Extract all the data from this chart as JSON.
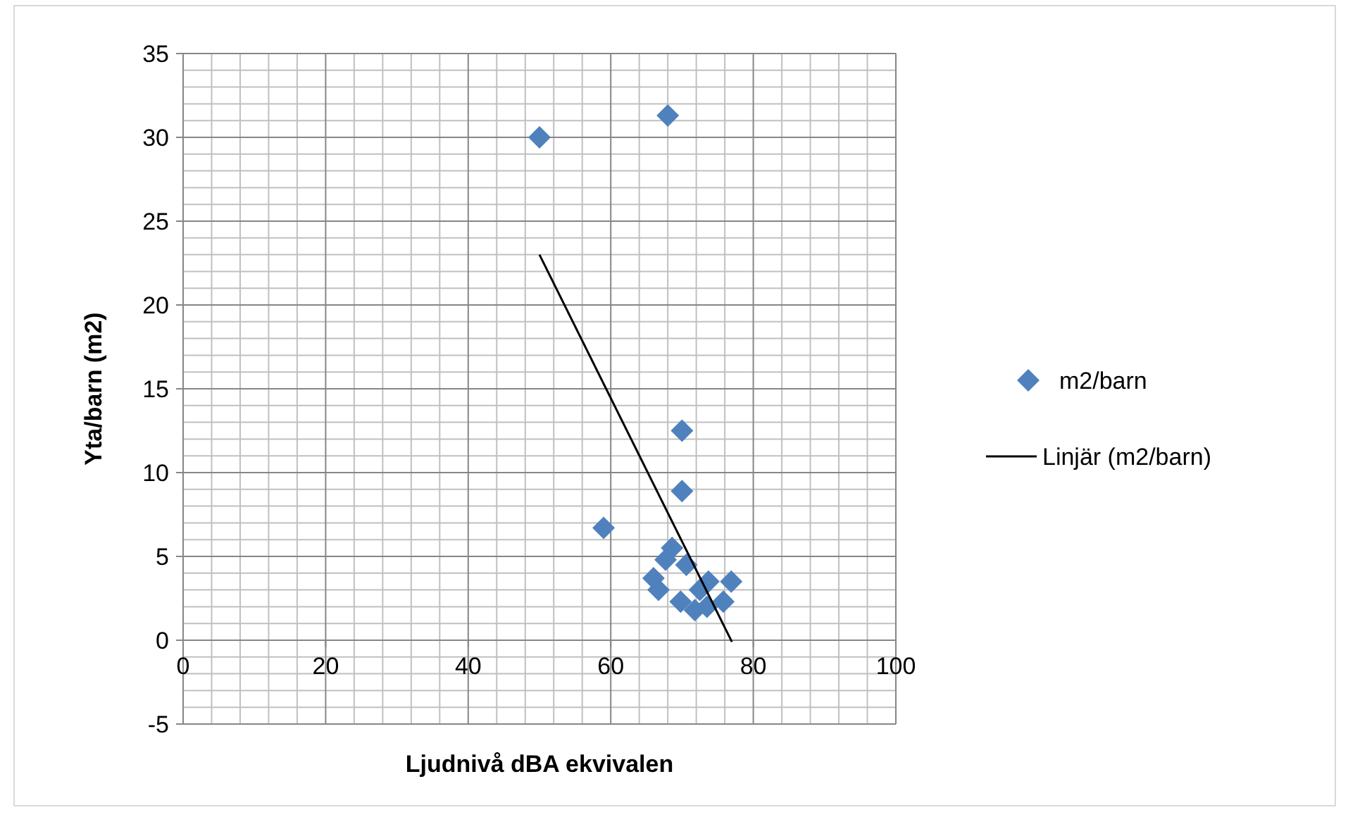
{
  "chart_data": {
    "type": "scatter",
    "xlabel": "Ljudnivå dBA ekvivalen",
    "ylabel": "Yta/barn (m2)",
    "xlim": [
      0,
      100
    ],
    "xticks": [
      0,
      20,
      40,
      60,
      80,
      100
    ],
    "ylim": [
      -5,
      35
    ],
    "yticks": [
      -5,
      0,
      5,
      10,
      15,
      20,
      25,
      30,
      35
    ],
    "grid": true,
    "legend": "right",
    "marker": "diamond",
    "series": [
      {
        "name": "m2/barn",
        "color": "#4f81bd",
        "x": [
          50,
          68,
          70,
          70,
          59,
          68.6,
          67.7,
          70.6,
          66,
          66.7,
          73.7,
          76.9,
          69.8,
          71.8,
          73.5,
          75.8,
          72.5
        ],
        "values": [
          30,
          31.3,
          12.5,
          8.9,
          6.7,
          5.5,
          4.8,
          4.5,
          3.7,
          3.0,
          3.5,
          3.5,
          2.3,
          1.8,
          2.0,
          2.3,
          3.0
        ]
      },
      {
        "name": "Linjär (m2/barn)",
        "color": "#000000",
        "type": "line",
        "marker": "none",
        "line_style": "solid",
        "x": [
          50,
          77
        ],
        "values": [
          23,
          -0.1
        ]
      }
    ]
  }
}
